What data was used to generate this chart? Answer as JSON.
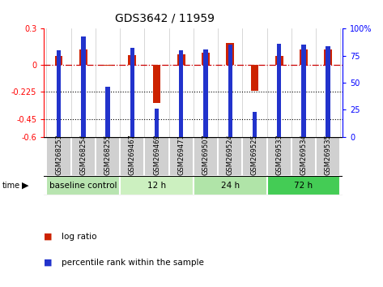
{
  "title": "GDS3642 / 11959",
  "samples": [
    "GSM268253",
    "GSM268254",
    "GSM268255",
    "GSM269467",
    "GSM269469",
    "GSM269471",
    "GSM269507",
    "GSM269524",
    "GSM269525",
    "GSM269533",
    "GSM269534",
    "GSM269535"
  ],
  "log_ratio": [
    0.07,
    0.13,
    -0.01,
    0.08,
    -0.32,
    0.09,
    0.1,
    0.18,
    -0.22,
    0.07,
    0.13,
    0.13
  ],
  "percentile_rank": [
    80,
    93,
    46,
    82,
    26,
    80,
    81,
    85,
    23,
    86,
    85,
    84
  ],
  "groups": [
    {
      "label": "baseline control",
      "start": 0,
      "end": 3,
      "color": "#b8e4b0"
    },
    {
      "label": "12 h",
      "start": 3,
      "end": 6,
      "color": "#ccf0c0"
    },
    {
      "label": "24 h",
      "start": 6,
      "end": 9,
      "color": "#b0e4a8"
    },
    {
      "label": "72 h",
      "start": 9,
      "end": 12,
      "color": "#44cc55"
    }
  ],
  "ylim_left": [
    -0.6,
    0.3
  ],
  "ylim_right": [
    0,
    100
  ],
  "yticks_left": [
    -0.6,
    -0.45,
    -0.225,
    0.0,
    0.3
  ],
  "ytick_labels_left": [
    "-0.6",
    "-0.45",
    "-0.225",
    "0",
    "0.3"
  ],
  "yticks_right": [
    0,
    25,
    50,
    75,
    100
  ],
  "ytick_labels_right": [
    "0",
    "25",
    "50",
    "75",
    "100%"
  ],
  "hlines_dotted": [
    -0.225,
    -0.45
  ],
  "bar_color_lr": "#cc2200",
  "bar_color_pr": "#2233cc",
  "title_fontsize": 10,
  "tick_fontsize": 7,
  "label_fontsize": 6,
  "group_fontsize": 7.5,
  "legend_fontsize": 7.5
}
